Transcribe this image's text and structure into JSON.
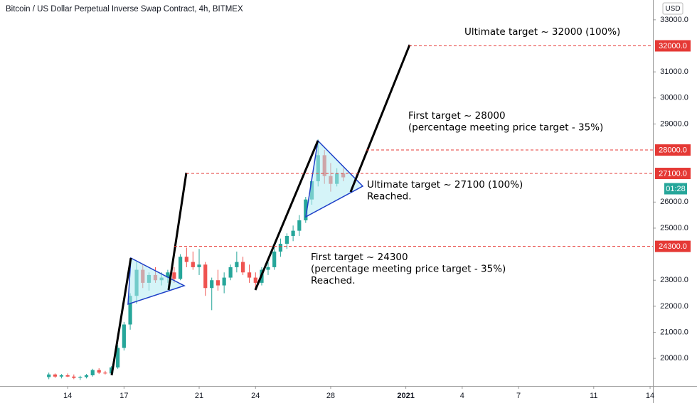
{
  "chart_data": {
    "type": "candlestick",
    "title": "Bitcoin / US Dollar Perpetual Inverse Swap Contract, 4h, BITMEX",
    "currency": "USD",
    "countdown": "01:28",
    "up_color": "#26a69a",
    "down_color": "#ef5350",
    "level_color": "#e53935",
    "x": [
      13.0,
      13.33,
      13.67,
      14.0,
      14.33,
      14.67,
      15.0,
      15.33,
      15.67,
      16.0,
      16.33,
      16.67,
      17.0,
      17.33,
      17.67,
      18.0,
      18.33,
      18.67,
      19.0,
      19.33,
      19.67,
      20.0,
      20.33,
      20.67,
      21.0,
      21.33,
      21.67,
      22.0,
      22.33,
      22.67,
      23.0,
      23.33,
      23.67,
      24.0,
      24.33,
      24.67,
      25.0,
      25.33,
      25.67,
      26.0,
      26.33,
      26.67,
      27.0,
      27.33,
      27.67,
      28.0,
      28.33,
      28.67
    ],
    "open": [
      19280,
      19380,
      19300,
      19350,
      19300,
      19250,
      19280,
      19350,
      19550,
      19450,
      19420,
      19650,
      20400,
      21300,
      22400,
      23400,
      22900,
      23200,
      23000,
      23100,
      23300,
      23050,
      23900,
      23700,
      23500,
      23600,
      22700,
      23000,
      22800,
      23100,
      23500,
      23700,
      23300,
      23100,
      22900,
      23400,
      23500,
      24100,
      24400,
      24700,
      24900,
      25300,
      26100,
      26800,
      27800,
      27000,
      26700,
      27100
    ],
    "high": [
      19450,
      19420,
      19400,
      19420,
      19380,
      19330,
      19400,
      19600,
      19620,
      19520,
      19700,
      20500,
      21400,
      22500,
      23700,
      23600,
      23300,
      23500,
      23300,
      23400,
      23500,
      24000,
      24250,
      24100,
      24200,
      23700,
      23100,
      23400,
      23300,
      23600,
      24100,
      23900,
      23600,
      23300,
      23500,
      23700,
      24300,
      24600,
      24800,
      25100,
      25500,
      26200,
      26900,
      28400,
      28000,
      27500,
      27300,
      27300
    ],
    "low": [
      19200,
      19250,
      19230,
      19280,
      19200,
      19170,
      19230,
      19300,
      19400,
      19380,
      19380,
      19600,
      20300,
      21100,
      22100,
      22700,
      22600,
      22900,
      22800,
      22900,
      22900,
      23000,
      23500,
      23400,
      23200,
      22400,
      21850,
      22600,
      22500,
      23000,
      23300,
      23200,
      22900,
      22700,
      22800,
      23200,
      23400,
      23900,
      24200,
      24500,
      24700,
      25200,
      25900,
      26600,
      26700,
      26400,
      26600,
      26800
    ],
    "close": [
      19380,
      19300,
      19350,
      19300,
      19250,
      19280,
      19350,
      19550,
      19450,
      19420,
      19650,
      20400,
      21300,
      22400,
      23400,
      22900,
      23200,
      23000,
      23100,
      23300,
      23050,
      23900,
      23700,
      23500,
      23600,
      22700,
      23000,
      22800,
      23100,
      23500,
      23700,
      23300,
      23100,
      22900,
      23400,
      23500,
      24100,
      24400,
      24700,
      24900,
      25300,
      26100,
      26800,
      27800,
      27000,
      26700,
      27100,
      26950
    ],
    "xlim": [
      10.4,
      45.15
    ],
    "ylim": [
      18940,
      33760
    ],
    "xticks": [
      14,
      17,
      21,
      24,
      28,
      {
        "value": 32,
        "label": "2021"
      },
      {
        "value": 35,
        "label": "4"
      },
      {
        "value": 38,
        "label": "7"
      },
      {
        "value": 42,
        "label": "11"
      },
      {
        "value": 45,
        "label": "14"
      }
    ],
    "yticks": [
      {
        "value": 33000,
        "label": "33000.0"
      },
      {
        "value": 31000,
        "label": "31000.0"
      },
      {
        "value": 30000,
        "label": "30000.0"
      },
      {
        "value": 29000,
        "label": "29000.0"
      },
      {
        "value": 26000,
        "label": "26000.0"
      },
      {
        "value": 25000,
        "label": "25000.0"
      },
      {
        "value": 23000,
        "label": "23000.0"
      },
      {
        "value": 22000,
        "label": "22000.0"
      },
      {
        "value": 21000,
        "label": "21000.0"
      },
      {
        "value": 20000,
        "label": "20000.0"
      }
    ],
    "levels": [
      {
        "value": 32000,
        "label": "32000.0"
      },
      {
        "value": 28000,
        "label": "28000.0"
      },
      {
        "value": 27100,
        "label": "27100.0"
      },
      {
        "value": 24300,
        "label": "24300.0"
      }
    ],
    "annotations": [
      [
        "Ultimate target ~ 32000 (100%)"
      ],
      [
        "First target ~ 28000",
        "(percentage meeting price target - 35%)"
      ],
      [
        "Ultimate target ~ 27100 (100%)",
        "Reached."
      ],
      [
        "First target ~ 24300",
        "(percentage meeting price target - 35%)",
        "Reached."
      ]
    ]
  }
}
